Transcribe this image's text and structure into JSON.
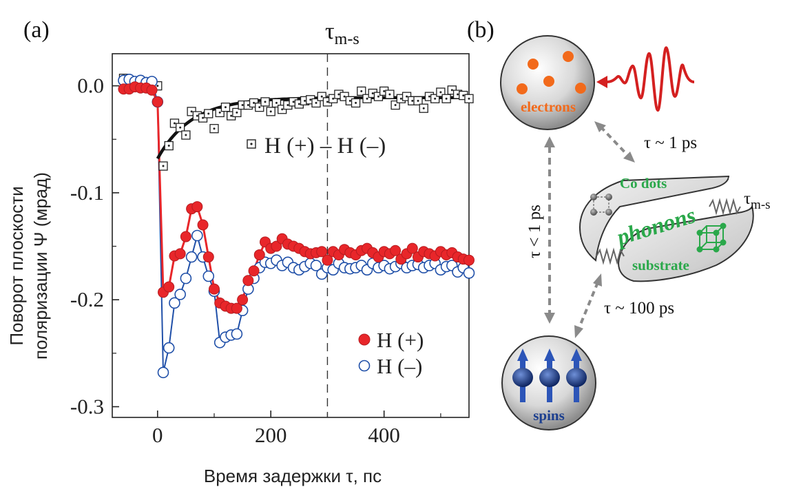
{
  "chart_data": {
    "type": "scatter",
    "panel_label": "(a)",
    "title": "",
    "xlabel": "Время задержки τ, пс",
    "ylabel_lines": [
      "Поворот плоскости",
      "поляризации Ψ (мрад)"
    ],
    "xlim": [
      -80,
      550
    ],
    "ylim": [
      -0.31,
      0.03
    ],
    "xticks": [
      0,
      200,
      400
    ],
    "xtick_labels": [
      "0",
      "200",
      "400"
    ],
    "yticks": [
      0.0,
      -0.1,
      -0.2,
      -0.3
    ],
    "ytick_labels": [
      "0.0",
      "-0.1",
      "-0.2",
      "-0.3"
    ],
    "vline": {
      "x": 300,
      "label_main": "τ",
      "label_sub": "m-s"
    },
    "legend": {
      "placement": "lower-right",
      "entries": [
        "H (+)",
        "H (–)"
      ]
    },
    "diff_label": "H (+) – H (–)",
    "series": [
      {
        "name": "H (+)",
        "color": "#e8262a",
        "marker": "filled-circle",
        "x": [
          -60,
          -50,
          -40,
          -30,
          -20,
          -10,
          0,
          10,
          20,
          30,
          40,
          50,
          60,
          70,
          80,
          90,
          100,
          110,
          120,
          130,
          140,
          150,
          160,
          170,
          180,
          190,
          200,
          210,
          220,
          230,
          240,
          250,
          260,
          270,
          280,
          290,
          300,
          310,
          320,
          330,
          340,
          350,
          360,
          370,
          380,
          390,
          400,
          410,
          420,
          430,
          440,
          450,
          460,
          470,
          480,
          490,
          500,
          510,
          520,
          530,
          540,
          550
        ],
        "values": [
          -0.003,
          -0.003,
          -0.001,
          -0.002,
          -0.002,
          -0.004,
          -0.015,
          -0.193,
          -0.188,
          -0.159,
          -0.157,
          -0.141,
          -0.115,
          -0.113,
          -0.13,
          -0.16,
          -0.19,
          -0.203,
          -0.206,
          -0.208,
          -0.208,
          -0.2,
          -0.182,
          -0.173,
          -0.158,
          -0.146,
          -0.152,
          -0.15,
          -0.143,
          -0.148,
          -0.15,
          -0.152,
          -0.155,
          -0.157,
          -0.156,
          -0.155,
          -0.163,
          -0.155,
          -0.158,
          -0.153,
          -0.156,
          -0.158,
          -0.154,
          -0.152,
          -0.156,
          -0.16,
          -0.155,
          -0.157,
          -0.154,
          -0.162,
          -0.157,
          -0.152,
          -0.16,
          -0.155,
          -0.157,
          -0.159,
          -0.155,
          -0.158,
          -0.156,
          -0.16,
          -0.162,
          -0.163
        ]
      },
      {
        "name": "H (–)",
        "color": "#1f4fa8",
        "marker": "open-circle",
        "x": [
          -60,
          -50,
          -40,
          -30,
          -20,
          -10,
          0,
          10,
          20,
          30,
          40,
          50,
          60,
          70,
          80,
          90,
          100,
          110,
          120,
          130,
          140,
          150,
          160,
          170,
          180,
          190,
          200,
          210,
          220,
          230,
          240,
          250,
          260,
          270,
          280,
          290,
          300,
          310,
          320,
          330,
          340,
          350,
          360,
          370,
          380,
          390,
          400,
          410,
          420,
          430,
          440,
          450,
          460,
          470,
          480,
          490,
          500,
          510,
          520,
          530,
          540,
          550
        ],
        "values": [
          0.005,
          0.006,
          0.004,
          0.005,
          0.003,
          0.004,
          -0.015,
          -0.268,
          -0.245,
          -0.203,
          -0.195,
          -0.18,
          -0.16,
          -0.14,
          -0.16,
          -0.178,
          -0.192,
          -0.24,
          -0.235,
          -0.233,
          -0.232,
          -0.21,
          -0.19,
          -0.18,
          -0.17,
          -0.165,
          -0.166,
          -0.163,
          -0.168,
          -0.165,
          -0.17,
          -0.172,
          -0.169,
          -0.166,
          -0.168,
          -0.176,
          -0.17,
          -0.172,
          -0.166,
          -0.17,
          -0.171,
          -0.17,
          -0.168,
          -0.172,
          -0.166,
          -0.17,
          -0.168,
          -0.171,
          -0.169,
          -0.166,
          -0.17,
          -0.168,
          -0.167,
          -0.17,
          -0.168,
          -0.166,
          -0.172,
          -0.169,
          -0.168,
          -0.174,
          -0.17,
          -0.175
        ]
      },
      {
        "name": "H (+) – H (–)",
        "color": "#222222",
        "marker": "open-square-dot",
        "x": [
          -60,
          -50,
          -40,
          -30,
          -20,
          -10,
          0,
          10,
          20,
          30,
          40,
          50,
          60,
          70,
          80,
          90,
          100,
          110,
          120,
          130,
          140,
          150,
          160,
          170,
          180,
          190,
          200,
          210,
          220,
          230,
          240,
          250,
          260,
          270,
          280,
          290,
          300,
          310,
          320,
          330,
          340,
          350,
          360,
          370,
          380,
          390,
          400,
          410,
          420,
          430,
          440,
          450,
          460,
          470,
          480,
          490,
          500,
          510,
          520,
          530,
          540,
          550
        ],
        "values": [
          0.007,
          0.005,
          0.003,
          0.004,
          0.002,
          0.001,
          0.0,
          -0.075,
          -0.056,
          -0.035,
          -0.039,
          -0.046,
          -0.024,
          -0.028,
          -0.03,
          -0.026,
          -0.04,
          -0.025,
          -0.02,
          -0.028,
          -0.025,
          -0.018,
          -0.018,
          -0.016,
          -0.02,
          -0.015,
          -0.024,
          -0.016,
          -0.022,
          -0.018,
          -0.015,
          -0.017,
          -0.014,
          -0.013,
          -0.016,
          -0.01,
          -0.015,
          -0.012,
          -0.008,
          -0.01,
          -0.014,
          -0.016,
          -0.005,
          -0.012,
          -0.007,
          -0.01,
          -0.005,
          -0.008,
          -0.018,
          -0.012,
          -0.01,
          -0.014,
          -0.014,
          -0.021,
          -0.01,
          -0.012,
          -0.006,
          -0.012,
          -0.004,
          -0.008,
          -0.009,
          -0.012
        ]
      }
    ],
    "fit": {
      "name": "fit",
      "color": "#111111",
      "amplitude": -0.068,
      "offset": -0.011,
      "tau_ps": 60,
      "x_start": 0,
      "x_end": 550
    }
  },
  "diagram": {
    "panel_label": "(b)",
    "electrons_label": "electrons",
    "spins_label": "spins",
    "co_dots_label": "Co dots",
    "phonons_label": "phonons",
    "substrate_label": "substrate",
    "tau_electron_phonon": "τ ~ 1 ps",
    "tau_electron_spin": "τ < 1 ps",
    "tau_phonon_spin": "τ ~ 100 ps",
    "tau_ms_main": "τ",
    "tau_ms_sub": "m-s",
    "colors": {
      "electron": "#f26a1b",
      "pulse": "#d42020",
      "phonon": "#2aa84a",
      "spin": "#1c3f8f",
      "arrow": "#8a8a8a"
    }
  }
}
